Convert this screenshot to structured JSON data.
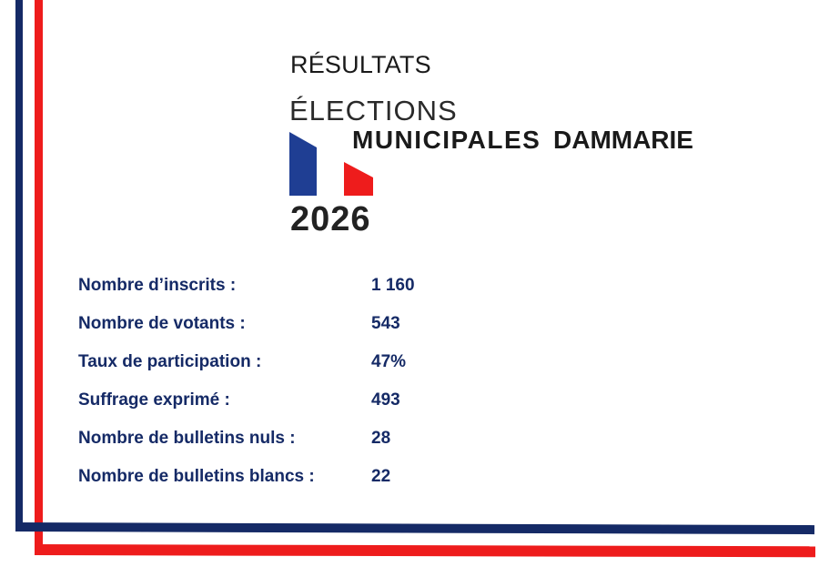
{
  "header": {
    "title": "RÉSULTATS",
    "elections": "ÉLECTIONS",
    "municipales": "MUNICIPALES",
    "city": "DAMMARIE",
    "year": "2026"
  },
  "colors": {
    "navy": "#152a66",
    "red": "#ee1c1c"
  },
  "stats": [
    {
      "label": "Nombre d’inscrits :",
      "value": "1 160"
    },
    {
      "label": "Nombre de votants :",
      "value": "543"
    },
    {
      "label": "Taux de participation :",
      "value": "47%"
    },
    {
      "label": "Suffrage exprimé :",
      "value": "493"
    },
    {
      "label": "Nombre de bulletins nuls :",
      "value": "28"
    },
    {
      "label": "Nombre de bulletins blancs :",
      "value": "22"
    }
  ]
}
